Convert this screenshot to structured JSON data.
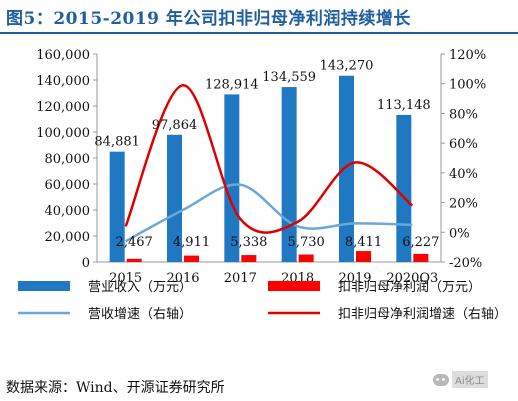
{
  "title": "图5：2015-2019 年公司扣非归母净利润持续增长",
  "source": "数据来源：Wind、开源证券研究所",
  "watermark": "Ai化工",
  "colors": {
    "revenue": "#1f78c1",
    "profit": "#ff0000",
    "revenue_growth": "#6aa8d8",
    "profit_growth": "#e00000",
    "title": "#1f5fa0"
  },
  "chart_data": {
    "type": "bar",
    "categories": [
      "2015",
      "2016",
      "2017",
      "2018",
      "2019",
      "2020Q3"
    ],
    "series": [
      {
        "name": "营业收入（万元）",
        "type": "bar",
        "axis": "left",
        "values": [
          84881,
          97864,
          128914,
          134559,
          143270,
          113148
        ],
        "labels": [
          "84,881",
          "97,864",
          "128,914",
          "134,559",
          "143,270",
          "113,148"
        ]
      },
      {
        "name": "扣非归母净利润（万元）",
        "type": "bar",
        "axis": "left",
        "values": [
          2467,
          4911,
          5338,
          5730,
          8411,
          6227
        ],
        "labels": [
          "2,467",
          "4,911",
          "5,338",
          "5,730",
          "8,411",
          "6,227"
        ]
      },
      {
        "name": "营收增速（右轴）",
        "type": "line",
        "axis": "right",
        "values": [
          -6,
          15,
          32,
          4,
          6,
          5
        ]
      },
      {
        "name": "扣非归母净利润增速（右轴）",
        "type": "line",
        "axis": "right",
        "values": [
          4,
          99,
          9,
          7,
          47,
          18
        ]
      }
    ],
    "y_left": {
      "min": 0,
      "max": 160000,
      "ticks": [
        "0",
        "20,000",
        "40,000",
        "60,000",
        "80,000",
        "100,000",
        "120,000",
        "140,000",
        "160,000"
      ]
    },
    "y_right": {
      "min": -20,
      "max": 120,
      "ticks": [
        "-20%",
        "0%",
        "20%",
        "40%",
        "60%",
        "80%",
        "100%",
        "120%"
      ]
    },
    "grid": false,
    "legend_position": "bottom"
  }
}
